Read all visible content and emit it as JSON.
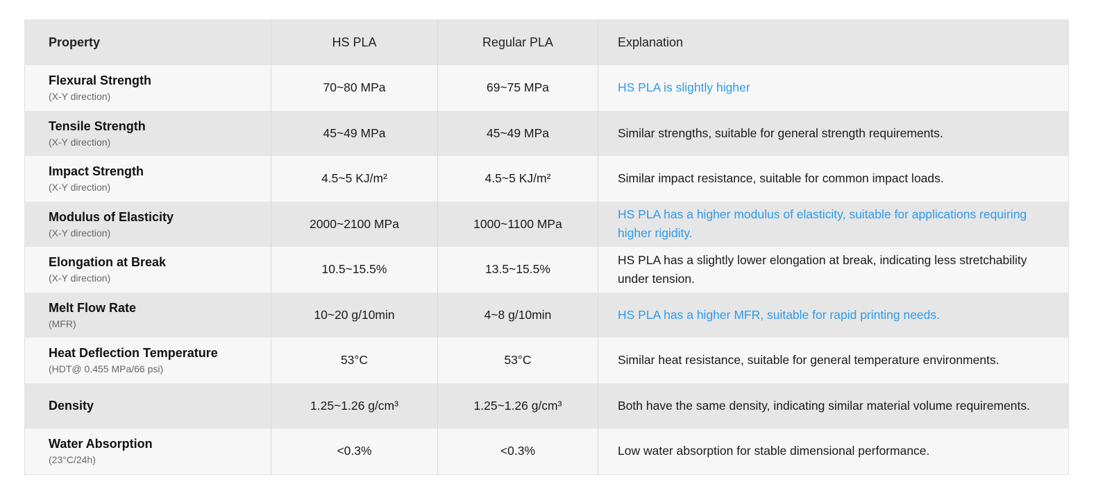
{
  "header": {
    "property": "Property",
    "hs_pla": "HS PLA",
    "regular_pla": "Regular PLA",
    "explanation": "Explanation"
  },
  "colors": {
    "highlight": "#2d9be8",
    "row_light": "#f7f7f7",
    "row_dark": "#e6e6e6"
  },
  "rows": [
    {
      "name": "Flexural Strength",
      "sub": "(X-Y direction)",
      "hs": "70~80 MPa",
      "regular": "69~75 MPa",
      "explanation": "HS PLA is slightly higher",
      "highlight": true
    },
    {
      "name": "Tensile Strength",
      "sub": "(X-Y direction)",
      "hs": "45~49 MPa",
      "regular": "45~49 MPa",
      "explanation": "Similar strengths, suitable for general strength requirements.",
      "highlight": false
    },
    {
      "name": "Impact Strength",
      "sub": "(X-Y direction)",
      "hs": "4.5~5 KJ/m²",
      "regular": "4.5~5 KJ/m²",
      "explanation": "Similar impact resistance, suitable for common impact loads.",
      "highlight": false
    },
    {
      "name": "Modulus of Elasticity",
      "sub": "(X-Y direction)",
      "hs": "2000~2100 MPa",
      "regular": "1000~1100 MPa",
      "explanation": "HS PLA has a higher modulus of elasticity, suitable for applications requiring higher rigidity.",
      "highlight": true
    },
    {
      "name": "Elongation at Break",
      "sub": "(X-Y direction)",
      "hs": "10.5~15.5%",
      "regular": "13.5~15.5%",
      "explanation": "HS PLA has a slightly lower elongation at break, indicating less stretchability under tension.",
      "highlight": false
    },
    {
      "name": "Melt Flow Rate",
      "sub": "(MFR)",
      "hs": "10~20 g/10min",
      "regular": "4~8 g/10min",
      "explanation": "HS PLA has a higher MFR, suitable for rapid printing needs.",
      "highlight": true
    },
    {
      "name": "Heat Deflection Temperature",
      "sub": "(HDT@ 0.455 MPa/66 psi)",
      "hs": "53°C",
      "regular": "53°C",
      "explanation": "Similar heat resistance, suitable for general temperature environments.",
      "highlight": false
    },
    {
      "name": "Density",
      "sub": "",
      "hs": "1.25~1.26 g/cm³",
      "regular": "1.25~1.26 g/cm³",
      "explanation": "Both have the same density, indicating similar material volume requirements.",
      "highlight": false
    },
    {
      "name": "Water Absorption",
      "sub": "(23°C/24h)",
      "hs": "<0.3%",
      "regular": "<0.3%",
      "explanation": "Low water absorption for stable dimensional performance.",
      "highlight": false
    }
  ]
}
